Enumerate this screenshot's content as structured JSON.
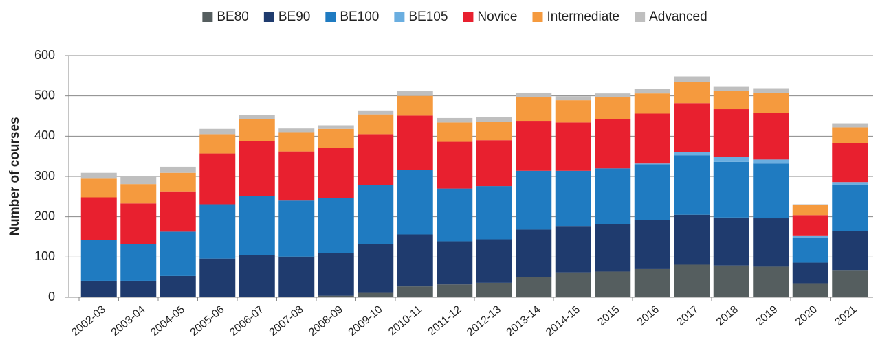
{
  "chart_data": {
    "type": "stacked_bar",
    "y_label": "Number of courses",
    "categories": [
      "2002-03",
      "2003-04",
      "2004-05",
      "2005-06",
      "2006-07",
      "2007-08",
      "2008-09",
      "2009-10",
      "2010-11",
      "2011-12",
      "2012-13",
      "2013-14",
      "2014-15",
      "2015",
      "2016",
      "2017",
      "2018",
      "2019",
      "2020",
      "2021"
    ],
    "series": [
      {
        "name": "BE80",
        "color": "#555e5f",
        "values": [
          0,
          0,
          0,
          0,
          0,
          0,
          4,
          11,
          27,
          32,
          36,
          51,
          62,
          64,
          70,
          81,
          79,
          76,
          35,
          66
        ]
      },
      {
        "name": "BE90",
        "color": "#1f3b6e",
        "values": [
          41,
          41,
          53,
          96,
          104,
          101,
          106,
          121,
          129,
          107,
          108,
          117,
          115,
          117,
          122,
          124,
          119,
          120,
          51,
          99
        ]
      },
      {
        "name": "BE100",
        "color": "#1f7bc1",
        "values": [
          102,
          91,
          110,
          135,
          148,
          139,
          136,
          146,
          160,
          131,
          132,
          146,
          137,
          139,
          138,
          147,
          138,
          136,
          62,
          115
        ]
      },
      {
        "name": "BE105",
        "color": "#6aaee0",
        "values": [
          0,
          0,
          0,
          0,
          0,
          0,
          0,
          0,
          0,
          0,
          0,
          0,
          0,
          0,
          2,
          8,
          13,
          10,
          4,
          6
        ]
      },
      {
        "name": "Novice",
        "color": "#e8202f",
        "values": [
          105,
          101,
          100,
          126,
          136,
          122,
          124,
          127,
          135,
          116,
          114,
          124,
          120,
          122,
          124,
          122,
          118,
          116,
          52,
          96
        ]
      },
      {
        "name": "Intermediate",
        "color": "#f59a3e",
        "values": [
          48,
          48,
          46,
          48,
          54,
          48,
          48,
          49,
          49,
          48,
          46,
          58,
          55,
          54,
          50,
          53,
          46,
          50,
          25,
          40
        ]
      },
      {
        "name": "Advanced",
        "color": "#bfbfbf",
        "values": [
          13,
          19,
          15,
          13,
          11,
          9,
          9,
          10,
          12,
          11,
          11,
          12,
          10,
          10,
          11,
          13,
          11,
          11,
          2,
          10
        ]
      }
    ],
    "ylim": [
      0,
      600
    ],
    "yticks": [
      0,
      100,
      200,
      300,
      400,
      500,
      600
    ],
    "grid": true,
    "legend": "top"
  }
}
